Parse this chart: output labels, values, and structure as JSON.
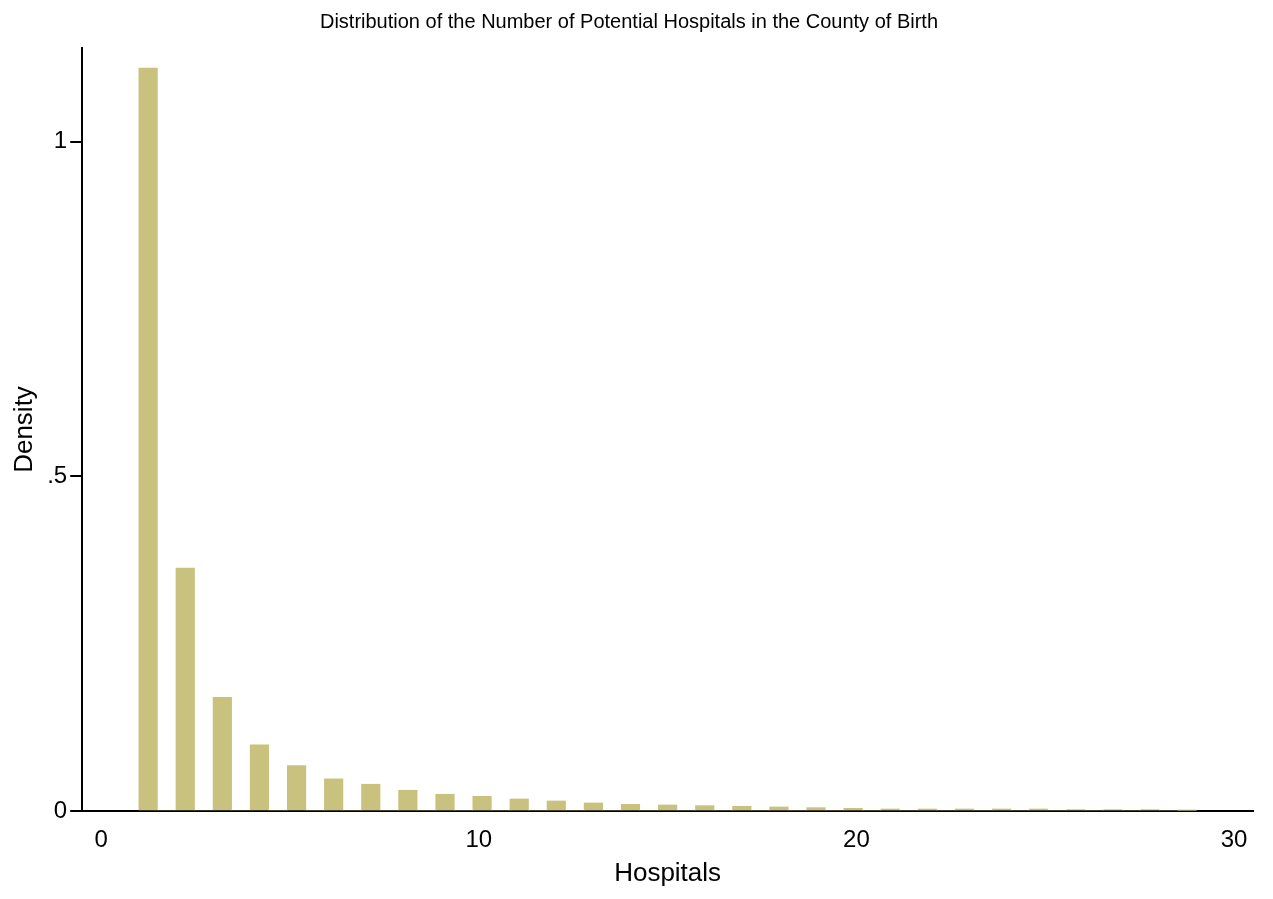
{
  "chart_data": {
    "type": "histogram",
    "title": "Distribution of the Number of Potential Hospitals in the County of Birth",
    "xlabel": "Hospitals",
    "ylabel": "Density",
    "bins": [
      1,
      1.491,
      1.982,
      2.474,
      2.965,
      3.456,
      3.947,
      4.439,
      4.93,
      5.421,
      5.912,
      6.404,
      6.895,
      7.386,
      7.877,
      8.368,
      8.86,
      9.351,
      9.842,
      10.333,
      10.825,
      11.316,
      11.807,
      12.298,
      12.789,
      13.281,
      13.772,
      14.263,
      14.754,
      15.246,
      15.737,
      16.228,
      16.719,
      17.211,
      17.702,
      18.193,
      18.684,
      19.175,
      19.667,
      20.158,
      20.649,
      21.14,
      21.632,
      22.123,
      22.614,
      23.105,
      23.596,
      24.088,
      24.579,
      25.07,
      25.561,
      26.053,
      26.544,
      27.035,
      27.526,
      28.018,
      28.509,
      29
    ],
    "values": [
      1.11,
      0,
      0.363,
      0,
      0.17,
      0,
      0.099,
      0,
      0.068,
      0,
      0.048,
      0,
      0.04,
      0,
      0.031,
      0,
      0.025,
      0,
      0.022,
      0,
      0.018,
      0,
      0.015,
      0,
      0.012,
      0,
      0.01,
      0,
      0.009,
      0,
      0.008,
      0,
      0.007,
      0,
      0.006,
      0,
      0.005,
      0,
      0.004,
      0,
      0.003,
      0,
      0.003,
      0,
      0.003,
      0,
      0.003,
      0,
      0.003,
      0,
      0.002,
      0,
      0.002,
      0,
      0.002,
      0,
      0.001
    ],
    "color": "#c9c27f",
    "xlim": [
      -0.5,
      30.5
    ],
    "xticks": [
      0,
      10,
      20,
      30
    ],
    "ylim": [
      0,
      1.14
    ],
    "yticks": [
      0,
      {
        "value": 0.5,
        "label": ".5"
      },
      1
    ],
    "grid": false,
    "legend": false
  }
}
